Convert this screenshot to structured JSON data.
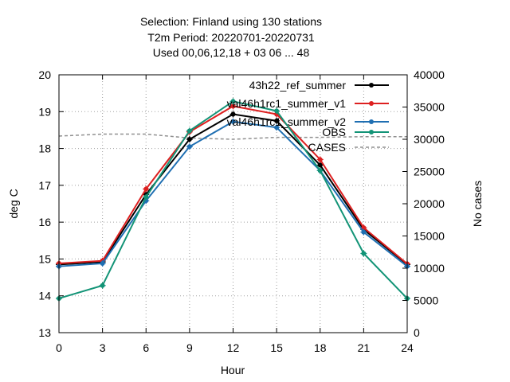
{
  "chart_data": {
    "type": "line",
    "title_lines": [
      "Selection: Finland using   130 stations",
      "T2m   Period: 20220701-20220731",
      "Used  00,06,12,18  + 03 06 ... 48"
    ],
    "xlabel": "Hour",
    "ylabel": "deg C",
    "y2label": "No cases",
    "x": [
      0,
      3,
      6,
      9,
      12,
      15,
      18,
      21,
      24
    ],
    "x_ticks": [
      "0",
      "3",
      "6",
      "9",
      "12",
      "15",
      "18",
      "21",
      "24"
    ],
    "y_ticks": [
      "13",
      "14",
      "15",
      "16",
      "17",
      "18",
      "19",
      "20"
    ],
    "y2_ticks": [
      "0",
      "5000",
      "10000",
      "15000",
      "20000",
      "25000",
      "30000",
      "35000",
      "40000"
    ],
    "xlim": [
      0,
      24
    ],
    "ylim": [
      13,
      20
    ],
    "y2lim": [
      0,
      40000
    ],
    "grid": true,
    "legend_position": "top-right",
    "series": [
      {
        "name": "43h22_ref_summer",
        "color": "#000000",
        "axis": "y",
        "values": [
          14.85,
          14.92,
          16.75,
          18.25,
          18.93,
          18.75,
          17.55,
          15.8,
          14.85
        ]
      },
      {
        "name": "val46h1rc1_summer_v1",
        "color": "#dd2020",
        "axis": "y",
        "values": [
          14.88,
          14.95,
          16.9,
          18.45,
          19.15,
          18.93,
          17.7,
          15.85,
          14.87
        ]
      },
      {
        "name": "val46h1rc1_summer_v2",
        "color": "#1f6fb2",
        "axis": "y",
        "values": [
          14.8,
          14.88,
          16.58,
          18.05,
          18.73,
          18.57,
          17.4,
          15.73,
          14.8
        ]
      },
      {
        "name": "OBS",
        "color": "#139477",
        "axis": "y",
        "values": [
          13.93,
          14.28,
          16.68,
          18.48,
          19.28,
          19.02,
          17.4,
          15.15,
          13.93
        ]
      },
      {
        "name": "CASES",
        "color": "#909090",
        "axis": "y2",
        "dashed": true,
        "values": [
          30500,
          30800,
          30800,
          30200,
          30000,
          30300,
          30300,
          30400,
          30400
        ]
      }
    ]
  }
}
